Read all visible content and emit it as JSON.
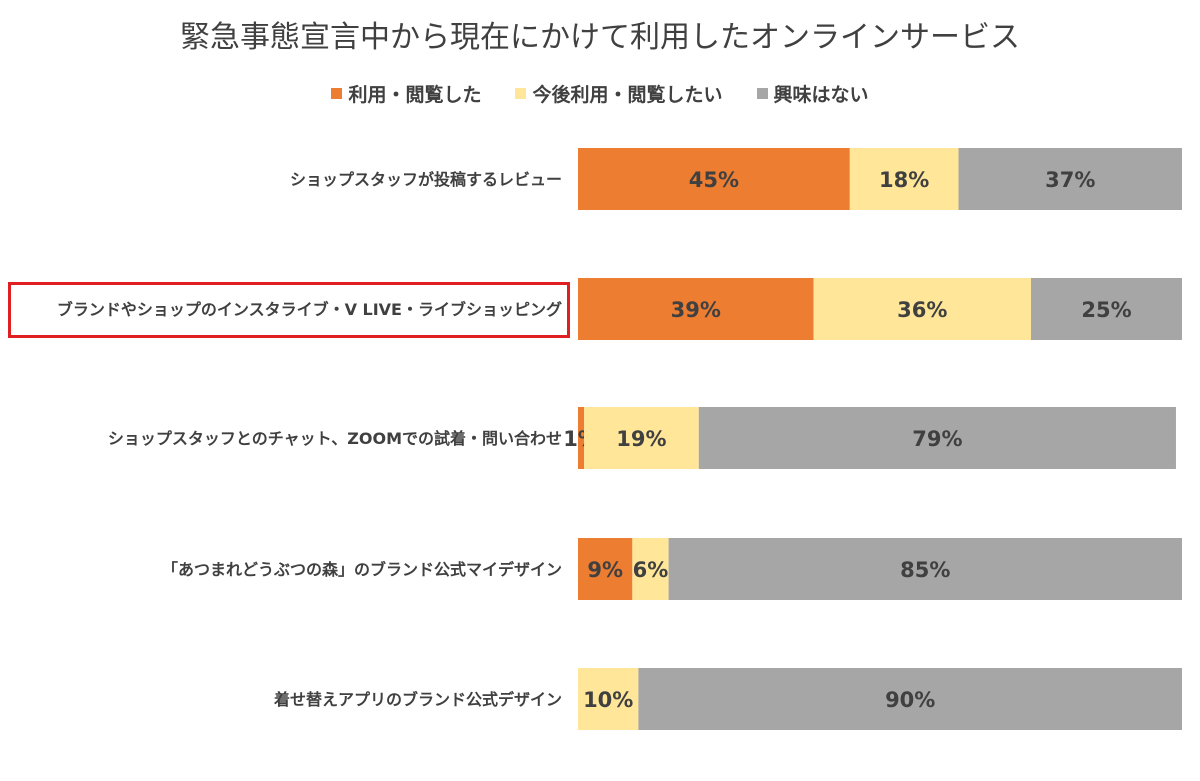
{
  "chart_data": {
    "type": "bar",
    "orientation": "horizontal",
    "stacked": true,
    "title": "緊急事態宣言中から現在にかけて利用したオンラインサービス",
    "categories": [
      "ショップスタッフが投稿するレビュー",
      "ブランドやショップのインスタライブ・V LIVE・ライブショッピング",
      "ショップスタッフとのチャット、ZOOMでの試着・問い合わせ",
      "「あつまれどうぶつの森」のブランド公式マイデザイン",
      "着せ替えアプリのブランド公式デザイン"
    ],
    "series": [
      {
        "name": "利用・閲覧した",
        "color": "#ed7d31",
        "values": [
          45,
          39,
          1,
          9,
          0
        ]
      },
      {
        "name": "今後利用・閲覧したい",
        "color": "#ffe699",
        "values": [
          18,
          36,
          19,
          6,
          10
        ]
      },
      {
        "name": "興味はない",
        "color": "#a6a6a6",
        "values": [
          37,
          25,
          79,
          85,
          90
        ]
      }
    ],
    "data_labels": [
      [
        "45%",
        "18%",
        "37%"
      ],
      [
        "39%",
        "36%",
        "25%"
      ],
      [
        "1%",
        "19%",
        "79%"
      ],
      [
        "9%",
        "6%",
        "85%"
      ],
      [
        "",
        "10%",
        "90%"
      ]
    ],
    "xlim": [
      0,
      100
    ],
    "legend_position": "top",
    "grid": false,
    "highlighted_category_index": 1,
    "highlight_color": "#e02020"
  }
}
